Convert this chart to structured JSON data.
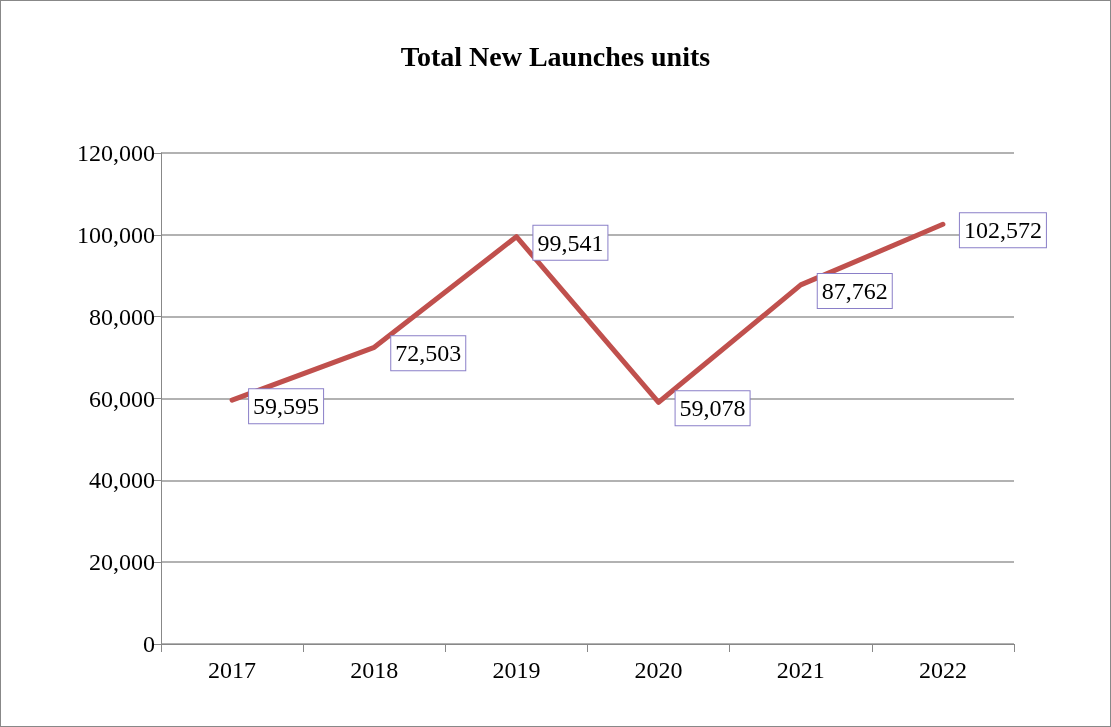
{
  "chart_data": {
    "type": "line",
    "title": "Total New Launches units",
    "categories": [
      "2017",
      "2018",
      "2019",
      "2020",
      "2021",
      "2022"
    ],
    "series": [
      {
        "color": "#c0504d",
        "values": [
          59595,
          72503,
          99541,
          59078,
          87762,
          102572
        ],
        "value_labels": [
          "59,595",
          "72,503",
          "99,541",
          "59,078",
          "87,762",
          "102,572"
        ]
      }
    ],
    "ylim": [
      0,
      120000
    ],
    "yticks": [
      0,
      {
        "value": 20000,
        "label": "20,000"
      },
      {
        "value": 40000,
        "label": "40,000"
      },
      {
        "value": 60000,
        "label": "60,000"
      },
      {
        "value": 80000,
        "label": "80,000"
      },
      {
        "value": 100000,
        "label": "100,000"
      },
      {
        "value": 120000,
        "label": "120,000"
      }
    ],
    "grid": "y",
    "marker": "none",
    "line_style": "solid"
  }
}
